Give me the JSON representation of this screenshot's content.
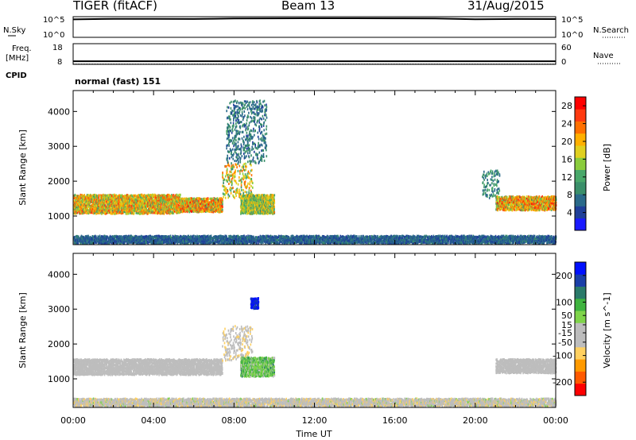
{
  "header": {
    "radar": "TIGER (fitACF)",
    "beam": "Beam 13",
    "date": "31/Aug/2015"
  },
  "sky_panel": {
    "left_label": "N.Sky",
    "right_label": "N.Search",
    "left_ticks": [
      "10^5",
      "10^0"
    ],
    "right_ticks": [
      "10^5",
      "10^0"
    ]
  },
  "freq_panel": {
    "label_line1": "Freq.",
    "label_line2": "[MHz]",
    "left_ticks": [
      "18",
      "8"
    ],
    "right_ticks": [
      "60",
      "0"
    ],
    "right_label": "Nave",
    "cpid_label": "CPID",
    "cpid_value": "normal (fast) 151"
  },
  "colors": {
    "power_scale": [
      "#1a1aff",
      "#1f3f99",
      "#2a6a8a",
      "#3a8f6a",
      "#49a86a",
      "#8acc3d",
      "#e0d020",
      "#ffb000",
      "#ff7000",
      "#ff3a10",
      "#ff0000"
    ],
    "velocity_scale": [
      "#ff0000",
      "#ff5a00",
      "#ff9a00",
      "#ffd060",
      "#bdbdbd",
      "#bdbdbd",
      "#7fd44a",
      "#3fb33f",
      "#2a7a6a",
      "#1a3fa8",
      "#0010ff"
    ]
  },
  "chart_data": [
    {
      "type": "line",
      "name": "sky-noise",
      "ylabel_left": "N.Sky",
      "ylabel_right": "N.Search",
      "yscale": "log",
      "ylim": [
        1,
        100000
      ],
      "x_hours": [
        0,
        2,
        4,
        6,
        7,
        8,
        10,
        12,
        14,
        16,
        18,
        19,
        20,
        22,
        24
      ],
      "n_sky": [
        22000,
        30000,
        30000,
        28000,
        32000,
        38000,
        40000,
        42000,
        41000,
        40000,
        36000,
        30000,
        24000,
        28000,
        26000
      ],
      "n_search_level": "flat"
    },
    {
      "type": "line",
      "name": "frequency-nave",
      "ylabel_left": "Freq. [MHz]",
      "left_ylim": [
        8,
        18
      ],
      "right_ylim": [
        0,
        60
      ],
      "freq_mhz": 9.5,
      "nave": 1
    },
    {
      "type": "heatmap",
      "name": "power",
      "ylabel": "Slant Range [km]",
      "colorbar_label": "Power [dB]",
      "colorbar_ticks": [
        4,
        8,
        12,
        16,
        20,
        24,
        28
      ],
      "colorbar_range": [
        0,
        30
      ],
      "yticks": [
        1000,
        2000,
        3000,
        4000
      ],
      "ylim": [
        180,
        4600
      ],
      "xlim_hours": [
        0,
        24
      ],
      "echo_regions": [
        {
          "t_start": 0.0,
          "t_end": 5.3,
          "r_min": 1050,
          "r_max": 1600,
          "peak_db": 24
        },
        {
          "t_start": 5.3,
          "t_end": 7.4,
          "r_min": 1100,
          "r_max": 1500,
          "peak_db": 26
        },
        {
          "t_start": 7.4,
          "t_end": 8.9,
          "r_min": 1500,
          "r_max": 2500,
          "peak_db": 22
        },
        {
          "t_start": 8.3,
          "t_end": 10.0,
          "r_min": 1050,
          "r_max": 1600,
          "peak_db": 20
        },
        {
          "t_start": 7.6,
          "t_end": 9.6,
          "r_min": 2500,
          "r_max": 4300,
          "peak_db": 10
        },
        {
          "t_start": 21.0,
          "t_end": 24.0,
          "r_min": 1150,
          "r_max": 1550,
          "peak_db": 26
        },
        {
          "t_start": 20.3,
          "t_end": 21.2,
          "r_min": 1500,
          "r_max": 2300,
          "peak_db": 12
        },
        {
          "t_start": 0.0,
          "t_end": 24.0,
          "r_min": 200,
          "r_max": 420,
          "peak_db": 8
        }
      ]
    },
    {
      "type": "heatmap",
      "name": "velocity",
      "ylabel": "Slant Range [km]",
      "colorbar_label": "Velocity [m s^-1]",
      "colorbar_ticks": [
        -200,
        -100,
        -50,
        -15,
        15,
        50,
        100,
        200
      ],
      "colorbar_range": [
        -250,
        250
      ],
      "yticks": [
        1000,
        2000,
        3000,
        4000
      ],
      "ylim": [
        180,
        4600
      ],
      "xlabel": "Time UT",
      "xticks": [
        "00:00",
        "04:00",
        "08:00",
        "12:00",
        "16:00",
        "20:00",
        "00:00"
      ],
      "xlim_hours": [
        0,
        24
      ],
      "echo_regions": [
        {
          "t_start": 0.0,
          "t_end": 7.4,
          "r_min": 1100,
          "r_max": 1550,
          "velocity": 0
        },
        {
          "t_start": 7.4,
          "t_end": 8.9,
          "r_min": 1500,
          "r_max": 2500,
          "velocity": -40
        },
        {
          "t_start": 8.3,
          "t_end": 10.0,
          "r_min": 1050,
          "r_max": 1600,
          "velocity": 60
        },
        {
          "t_start": 8.8,
          "t_end": 9.2,
          "r_min": 3000,
          "r_max": 3300,
          "velocity": 220
        },
        {
          "t_start": 21.0,
          "t_end": 24.0,
          "r_min": 1150,
          "r_max": 1550,
          "velocity": 0
        },
        {
          "t_start": 0.0,
          "t_end": 24.0,
          "r_min": 200,
          "r_max": 420,
          "velocity": -30
        }
      ]
    }
  ]
}
